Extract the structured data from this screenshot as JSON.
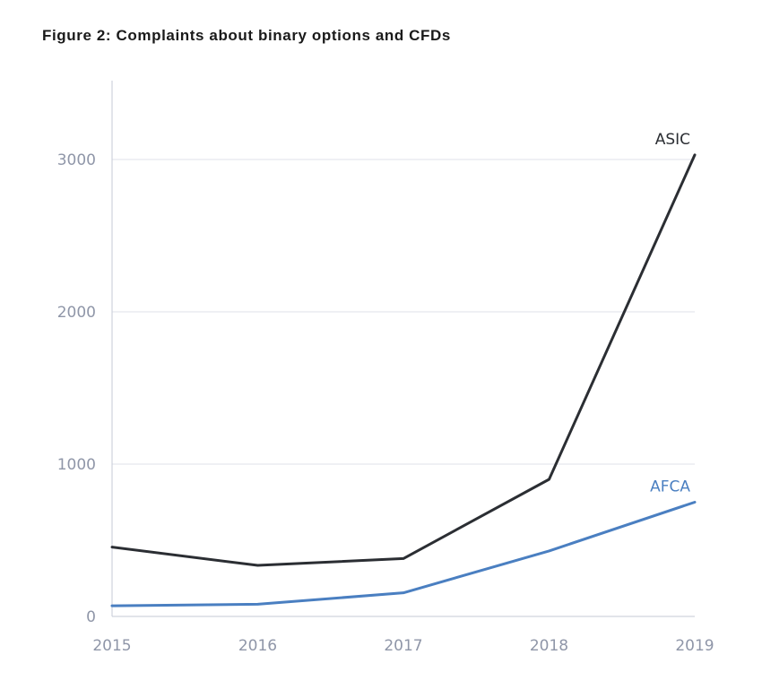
{
  "title": "Figure 2: Complaints about binary options and CFDs",
  "chart_data": {
    "type": "line",
    "title": "Figure 2: Complaints about binary options and CFDs",
    "xlabel": "",
    "ylabel": "",
    "x": [
      "2015",
      "2016",
      "2017",
      "2018",
      "2019"
    ],
    "ylim": [
      0,
      3400
    ],
    "yticks": [
      0,
      1000,
      2000,
      3000
    ],
    "grid": true,
    "series": [
      {
        "name": "ASIC",
        "color": "#2b2e33",
        "values": [
          455,
          335,
          380,
          900,
          3030
        ]
      },
      {
        "name": "AFCA",
        "color": "#4a7fc1",
        "values": [
          70,
          80,
          155,
          430,
          750
        ]
      }
    ]
  }
}
